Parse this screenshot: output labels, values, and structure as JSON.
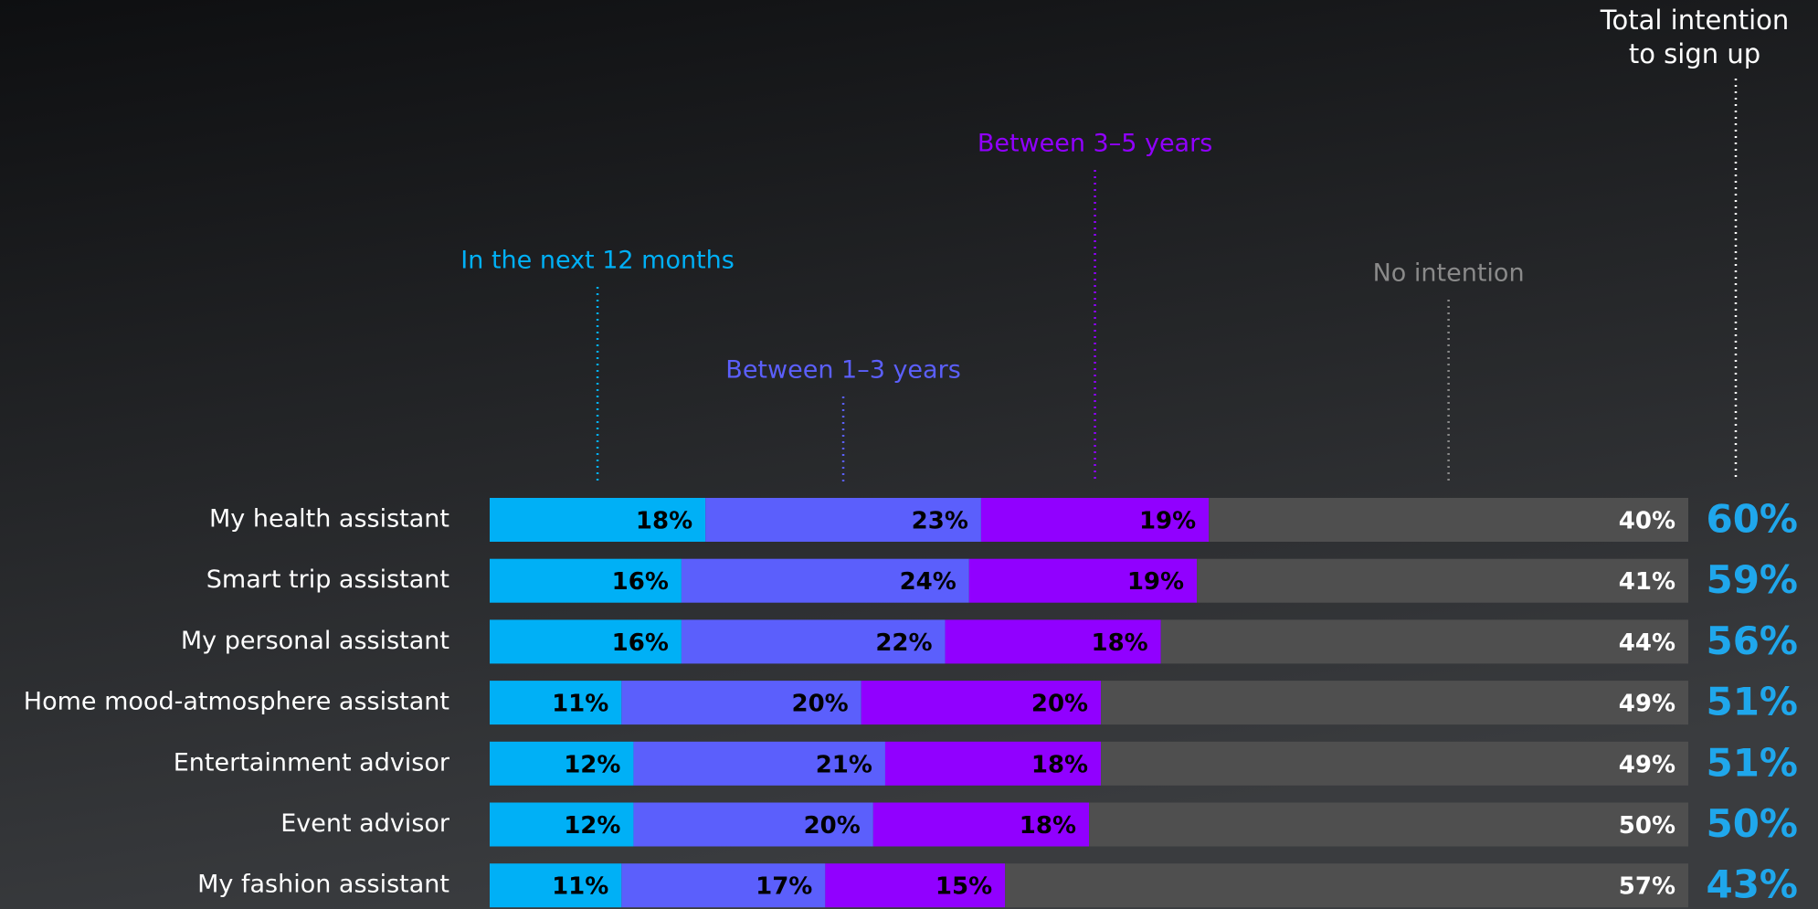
{
  "chart_data": {
    "type": "stacked-bar-horizontal",
    "categories": [
      "My health assistant",
      "Smart trip assistant",
      "My personal assistant",
      "Home mood-atmosphere assistant",
      "Entertainment advisor",
      "Event advisor",
      "My fashion assistant"
    ],
    "series": [
      {
        "name": "In the next 12 months",
        "color": "#00b0f6",
        "values": [
          18,
          16,
          16,
          11,
          12,
          12,
          11
        ],
        "value_labels": [
          "18%",
          "16%",
          "16%",
          "11%",
          "12%",
          "12%",
          "11%"
        ]
      },
      {
        "name": "Between 1–3 years",
        "color": "#5b5ffc",
        "values": [
          23,
          24,
          22,
          20,
          21,
          20,
          17
        ],
        "value_labels": [
          "23%",
          "24%",
          "22%",
          "20%",
          "21%",
          "20%",
          "17%"
        ]
      },
      {
        "name": "Between 3–5 years",
        "color": "#9100ff",
        "values": [
          19,
          19,
          18,
          20,
          18,
          18,
          15
        ],
        "value_labels": [
          "19%",
          "19%",
          "18%",
          "20%",
          "18%",
          "18%",
          "15%"
        ]
      },
      {
        "name": "No intention",
        "color": "#4f4f4f",
        "values": [
          40,
          41,
          44,
          49,
          49,
          50,
          57
        ],
        "value_labels": [
          "40%",
          "41%",
          "44%",
          "49%",
          "49%",
          "50%",
          "57%"
        ]
      }
    ],
    "totals": {
      "name": "Total intention to sign up",
      "color": "#1fa7ec",
      "values": [
        60,
        59,
        56,
        51,
        51,
        50,
        43
      ],
      "value_labels": [
        "60%",
        "59%",
        "56%",
        "51%",
        "51%",
        "50%",
        "43%"
      ]
    },
    "xlim": [
      0,
      100
    ]
  }
}
